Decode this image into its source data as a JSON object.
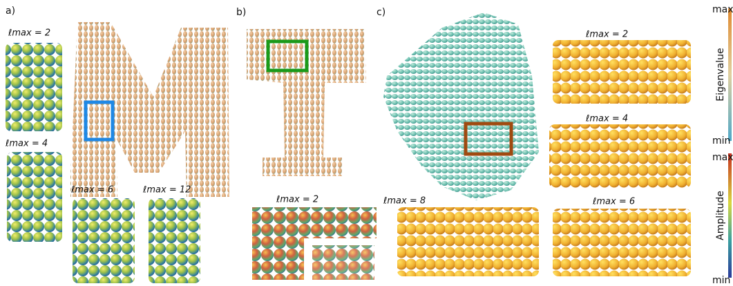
{
  "panels": [
    {
      "label": "a)",
      "insets": [
        "ℓmax = 2",
        "ℓmax = 4",
        "ℓmax = 6",
        "ℓmax = 12"
      ]
    },
    {
      "label": "b)",
      "insets": [
        "ℓmax = 2"
      ]
    },
    {
      "label": "c)",
      "insets": [
        "ℓmax = 2",
        "ℓmax = 4",
        "ℓmax = 8",
        "ℓmax = 6"
      ]
    }
  ],
  "colorbars": [
    {
      "max": "max",
      "min": "min",
      "title": "Eigenvalue"
    },
    {
      "max": "max",
      "min": "min",
      "title": "Amplitude"
    }
  ]
}
